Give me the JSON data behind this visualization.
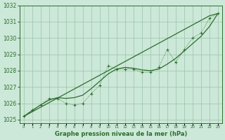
{
  "title": "Graphe pression niveau de la mer (hPa)",
  "bg_color": "#cce8d8",
  "grid_color": "#99c4aa",
  "line_color": "#2d6e2d",
  "hours": [
    0,
    1,
    2,
    3,
    4,
    5,
    6,
    7,
    8,
    9,
    10,
    11,
    12,
    13,
    14,
    15,
    16,
    17,
    18,
    19,
    20,
    21,
    22,
    23
  ],
  "pressure_dotted": [
    1025.2,
    1025.6,
    1025.9,
    1026.3,
    1026.3,
    1026.0,
    1025.9,
    1026.0,
    1026.6,
    1027.1,
    1028.3,
    1028.1,
    1028.1,
    1028.1,
    1027.9,
    1027.9,
    1028.2,
    1029.3,
    1028.5,
    1029.3,
    1030.0,
    1030.3,
    1031.2,
    1031.5
  ],
  "pressure_smooth": [
    1025.2,
    1025.55,
    1025.9,
    1026.2,
    1026.35,
    1026.3,
    1026.35,
    1026.5,
    1026.9,
    1027.35,
    1027.8,
    1028.1,
    1028.2,
    1028.15,
    1028.05,
    1028.0,
    1028.1,
    1028.4,
    1028.75,
    1029.2,
    1029.65,
    1030.1,
    1030.7,
    1031.5
  ],
  "pressure_linear": [
    1025.2,
    1025.48,
    1025.76,
    1026.04,
    1026.32,
    1026.6,
    1026.88,
    1027.16,
    1027.44,
    1027.72,
    1028.0,
    1028.28,
    1028.56,
    1028.84,
    1029.12,
    1029.4,
    1029.68,
    1029.96,
    1030.24,
    1030.52,
    1030.8,
    1031.08,
    1031.36,
    1031.5
  ],
  "ylim_min": 1024.8,
  "ylim_max": 1032.0,
  "yticks": [
    1025,
    1026,
    1027,
    1028,
    1029,
    1030,
    1031,
    1032
  ]
}
